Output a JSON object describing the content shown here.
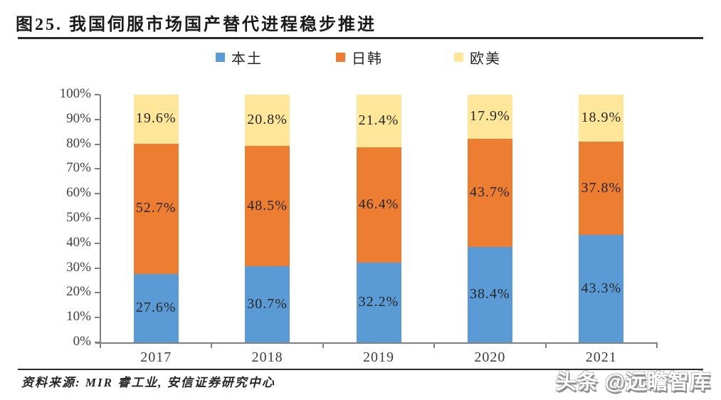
{
  "header": {
    "title": "图25. 我国伺服市场国产替代进程稳步推进"
  },
  "footer": {
    "source": "资料来源: MIR 睿工业, 安信证券研究中心",
    "watermark": "头条 @远瞻智库"
  },
  "colors": {
    "domestic_blue": "#5B9BD5",
    "japan_korea_orange": "#ED7D31",
    "europe_us_yellow": "#FFE699",
    "axis_gray": "#808080",
    "text_dark": "#262626"
  },
  "chart_data": {
    "type": "bar",
    "stacked": true,
    "title": "我国伺服市场国产替代进程稳步推进",
    "categories": [
      "2017",
      "2018",
      "2019",
      "2020",
      "2021"
    ],
    "series": [
      {
        "name": "本土",
        "color": "#5B9BD5",
        "values": [
          27.6,
          30.7,
          32.2,
          38.4,
          43.3
        ]
      },
      {
        "name": "日韩",
        "color": "#ED7D31",
        "values": [
          52.7,
          48.5,
          46.4,
          43.7,
          37.8
        ]
      },
      {
        "name": "欧美",
        "color": "#FFE699",
        "values": [
          19.6,
          20.8,
          21.4,
          17.9,
          18.9
        ]
      }
    ],
    "y_ticks": [
      "0%",
      "10%",
      "20%",
      "30%",
      "40%",
      "50%",
      "60%",
      "70%",
      "80%",
      "90%",
      "100%"
    ],
    "ylim": [
      0,
      100
    ],
    "xlabel": "",
    "ylabel": "",
    "grid": false,
    "legend_position": "top",
    "label_format": "{value}%"
  }
}
